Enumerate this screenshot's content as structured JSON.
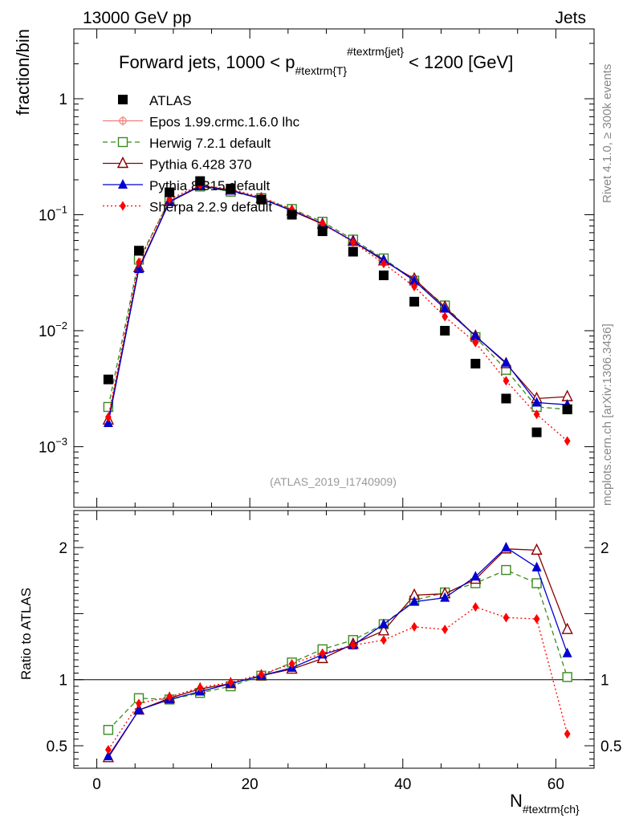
{
  "header": {
    "left": "13000 GeV pp",
    "right": "Jets"
  },
  "side_labels": {
    "rivet": "Rivet 4.1.0, ≥ 300k events",
    "mcplots": "mcplots.cern.ch [arXiv:1306.3436]"
  },
  "analysis_id": "(ATLAS_2019_I1740909)",
  "chart_data": {
    "type": "scatter",
    "title": {
      "main": "Forward jets, 1000 < p",
      "sub": "#textrm{T}",
      "sup": "#textrm{jet}",
      "tail": " < 1200 [GeV]"
    },
    "xlabel": {
      "main": "N",
      "sub": "#textrm{ch}"
    },
    "ylabel": "fraction/bin",
    "ratio_ylabel": "Ratio to ATLAS",
    "xlim": [
      -3,
      65
    ],
    "ylim": [
      0.0003,
      4
    ],
    "yscale": "log",
    "ratio_ylim": [
      0.33,
      2.28
    ],
    "x_ticks": [
      0,
      20,
      40,
      60
    ],
    "y_ticks": [
      {
        "value": 0.001,
        "base": "10",
        "exp": "−3"
      },
      {
        "value": 0.01,
        "base": "10",
        "exp": "−2"
      },
      {
        "value": 0.1,
        "base": "10",
        "exp": "−1"
      },
      {
        "value": 1,
        "label": "1"
      }
    ],
    "ratio_ticks": [
      {
        "value": 0.5,
        "label": "0.5"
      },
      {
        "value": 1,
        "label": "1"
      },
      {
        "value": 2,
        "label": "2"
      }
    ],
    "x": [
      1.5,
      5.5,
      9.5,
      13.5,
      17.5,
      21.5,
      25.5,
      29.5,
      33.5,
      37.5,
      41.5,
      45.5,
      49.5,
      53.5,
      57.5,
      61.5
    ],
    "series": [
      {
        "name": "ATLAS",
        "color": "#000000",
        "marker": "square-filled",
        "line": "none",
        "values": [
          0.0038,
          0.049,
          0.156,
          0.195,
          0.168,
          0.135,
          0.1,
          0.072,
          0.048,
          0.03,
          0.0178,
          0.01,
          0.0052,
          0.0026,
          0.00133,
          0.0021
        ],
        "ratio": []
      },
      {
        "name": "Epos 1.99.crmc.1.6.0 lhc",
        "color": "#f08080",
        "marker": "plus-circle",
        "line": "solid",
        "values": [],
        "ratio": []
      },
      {
        "name": "Herwig 7.2.1 default",
        "color": "#3a8a1e",
        "marker": "square-open",
        "line": "dashed",
        "values": [
          0.0022,
          0.041,
          0.132,
          0.175,
          0.158,
          0.139,
          0.112,
          0.087,
          0.061,
          0.042,
          0.027,
          0.0165,
          0.0088,
          0.0046,
          0.0022,
          0.0021
        ],
        "ratio": [
          0.62,
          0.86,
          0.85,
          0.9,
          0.95,
          1.03,
          1.13,
          1.23,
          1.3,
          1.42,
          1.6,
          1.66,
          1.73,
          1.83,
          1.73,
          1.02
        ]
      },
      {
        "name": "Pythia 6.428 370",
        "color": "#8b0000",
        "marker": "triangle-open",
        "line": "solid",
        "values": [
          0.0017,
          0.035,
          0.13,
          0.178,
          0.163,
          0.138,
          0.108,
          0.083,
          0.059,
          0.04,
          0.028,
          0.016,
          0.009,
          0.0052,
          0.0026,
          0.0027
        ],
        "ratio": [
          0.41,
          0.77,
          0.86,
          0.93,
          0.97,
          1.03,
          1.08,
          1.16,
          1.27,
          1.37,
          1.64,
          1.65,
          1.76,
          1.99,
          1.98,
          1.38
        ]
      },
      {
        "name": "Pythia 8.315 default",
        "color": "#0000d0",
        "marker": "triangle-filled",
        "line": "solid",
        "values": [
          0.0016,
          0.034,
          0.129,
          0.176,
          0.162,
          0.137,
          0.109,
          0.084,
          0.059,
          0.041,
          0.027,
          0.0155,
          0.009,
          0.0053,
          0.0024,
          0.0023
        ],
        "ratio": [
          0.42,
          0.77,
          0.85,
          0.91,
          0.97,
          1.03,
          1.09,
          1.19,
          1.26,
          1.42,
          1.59,
          1.62,
          1.78,
          2.0,
          1.85,
          1.2
        ]
      },
      {
        "name": "Sherpa 2.2.9 default",
        "color": "#ff0000",
        "marker": "diamond-filled",
        "line": "dotted",
        "values": [
          0.0018,
          0.039,
          0.136,
          0.18,
          0.166,
          0.142,
          0.111,
          0.084,
          0.058,
          0.038,
          0.024,
          0.0132,
          0.0079,
          0.0037,
          0.0019,
          0.00112
        ],
        "ratio": [
          0.47,
          0.82,
          0.87,
          0.94,
          0.98,
          1.04,
          1.12,
          1.2,
          1.26,
          1.3,
          1.4,
          1.38,
          1.55,
          1.47,
          1.46,
          0.59
        ]
      }
    ]
  }
}
